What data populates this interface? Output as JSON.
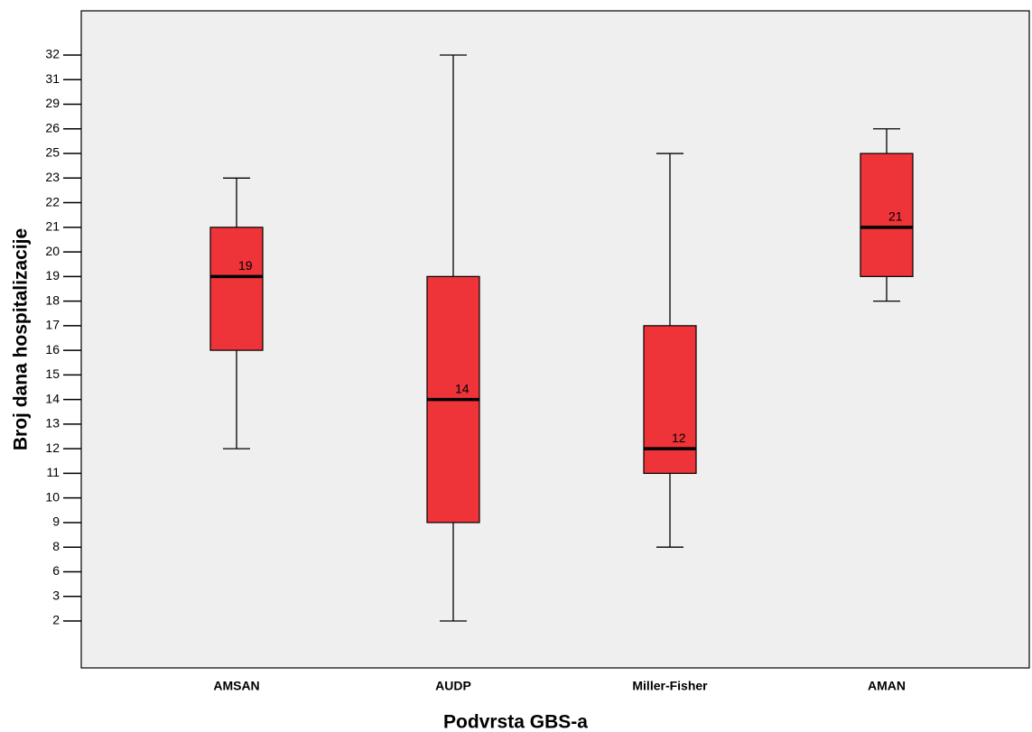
{
  "chart_data": {
    "type": "box",
    "x_label": "Podvrsta GBS-a",
    "y_label": "Broj dana hospitalizacije",
    "categories": [
      "AMSAN",
      "AUDP",
      "Miller-Fisher",
      "AMAN"
    ],
    "boxes": [
      {
        "min": 12,
        "q1": 16,
        "median": 19,
        "q3": 21,
        "max": 23
      },
      {
        "min": 2,
        "q1": 9,
        "median": 14,
        "q3": 19,
        "max": 32
      },
      {
        "min": 8,
        "q1": 11,
        "median": 12,
        "q3": 17,
        "max": 25
      },
      {
        "min": 18,
        "q1": 19,
        "median": 21,
        "q3": 25,
        "max": 26
      }
    ],
    "color": "#ee3339",
    "yscale": "ordinal",
    "yticks": [
      32,
      31,
      29,
      26,
      25,
      23,
      22,
      21,
      20,
      19,
      18,
      17,
      16,
      15,
      14,
      13,
      12,
      11,
      10,
      9,
      8,
      6,
      3,
      2
    ]
  }
}
